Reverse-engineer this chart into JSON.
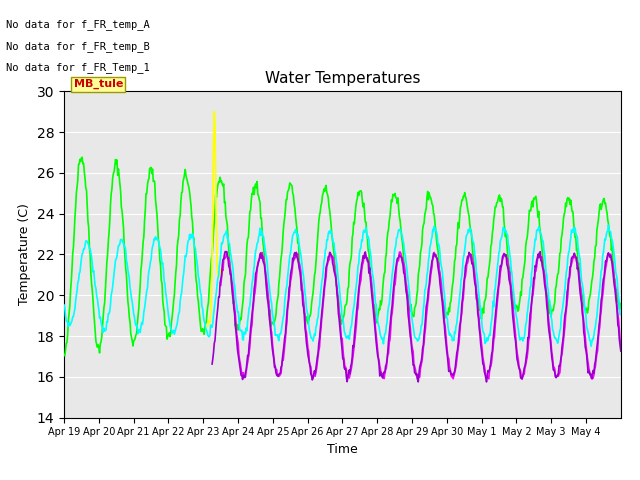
{
  "title": "Water Temperatures",
  "xlabel": "Time",
  "ylabel": "Temperature (C)",
  "ylim": [
    14,
    30
  ],
  "background_color": "#e8e8e8",
  "series": {
    "FR_temp_C": {
      "color": "#00ff00",
      "lw": 1.2
    },
    "WaterT": {
      "color": "#ffff00",
      "lw": 1.2
    },
    "CondTemp": {
      "color": "#9900cc",
      "lw": 1.2
    },
    "MDTemp_A": {
      "color": "#00ffff",
      "lw": 1.2
    },
    "WaterTemp_CTD": {
      "color": "#ff00ff",
      "lw": 1.2
    }
  },
  "annotations": [
    "No data for f_FR_temp_A",
    "No data for f_FR_temp_B",
    "No data for f_FR_Temp_1"
  ],
  "annotation_box_text": "MB_tule",
  "annotation_box_color": "#cc0000",
  "annotation_box_bg": "#ffff99",
  "xtick_labels": [
    "Apr 19",
    "Apr 20",
    "Apr 21",
    "Apr 22",
    "Apr 23",
    "Apr 24",
    "Apr 25",
    "Apr 26",
    "Apr 27",
    "Apr 28",
    "Apr 29",
    "Apr 30",
    "May 1",
    "May 2",
    "May 3",
    "May 4"
  ],
  "n_days": 16,
  "samples_per_day": 48
}
